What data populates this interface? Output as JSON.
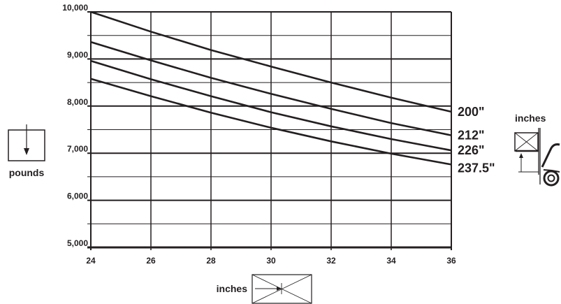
{
  "chart_data": {
    "type": "line",
    "x": [
      24,
      26,
      28,
      30,
      32,
      34,
      36
    ],
    "xlim": [
      24,
      36
    ],
    "ylim": [
      5000,
      10000
    ],
    "x_ticks": [
      "24",
      "26",
      "28",
      "30",
      "32",
      "34",
      "36"
    ],
    "y_ticks": [
      "5,000",
      "6,000",
      "7,000",
      "8,000",
      "9,000",
      "10,000"
    ],
    "y_tick_values": [
      5000,
      6000,
      7000,
      8000,
      9000,
      10000
    ],
    "grid": true,
    "series": [
      {
        "name": "200\"",
        "values": [
          10000,
          9580,
          9190,
          8840,
          8500,
          8180,
          7880
        ]
      },
      {
        "name": "212\"",
        "values": [
          9360,
          8970,
          8600,
          8260,
          7940,
          7640,
          7380
        ]
      },
      {
        "name": "226\"",
        "values": [
          8960,
          8570,
          8210,
          7870,
          7570,
          7300,
          7060
        ]
      },
      {
        "name": "237.5\"",
        "values": [
          8580,
          8210,
          7860,
          7540,
          7250,
          6990,
          6760
        ]
      }
    ]
  },
  "labels": {
    "y_unit": "pounds",
    "x_unit": "inches",
    "right_unit": "inches"
  },
  "colors": {
    "ink": "#231f20",
    "background": "#ffffff"
  },
  "icons": [
    "weight-arrow-icon",
    "load-dimension-icon",
    "forklift-mast-icon"
  ]
}
